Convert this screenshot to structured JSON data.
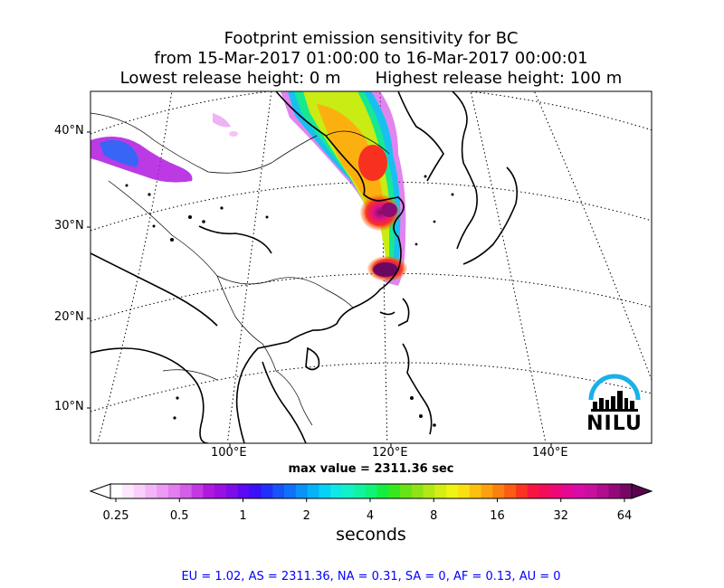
{
  "title": {
    "line1": "Footprint emission sensitivity for BC",
    "line2": "from 15-Mar-2017 01:00:00 to 16-Mar-2017 00:00:01",
    "lowest": "Lowest release height: 0 m",
    "highest": "Highest release height: 100 m"
  },
  "map": {
    "lat_labels": [
      "40°N",
      "30°N",
      "20°N",
      "10°N"
    ],
    "lon_labels": [
      "100°E",
      "120°E",
      "140°E"
    ],
    "max_value": "max value = 2311.36 sec"
  },
  "colorbar": {
    "tick_labels": [
      "0.25",
      "0.5",
      "1",
      "2",
      "4",
      "8",
      "16",
      "32",
      "64"
    ],
    "units": "seconds",
    "colors": [
      "#ffffff",
      "#fde7fd",
      "#f9cffb",
      "#f3b5f8",
      "#ec9af4",
      "#e27ef0",
      "#d45de9",
      "#c438e4",
      "#b018de",
      "#9a10e0",
      "#7e0cea",
      "#5c08f2",
      "#3a10f6",
      "#2030f8",
      "#1852fa",
      "#1070fa",
      "#0a92fa",
      "#06b2f8",
      "#08d0f6",
      "#10e8e8",
      "#12f2c8",
      "#10f4a0",
      "#0ef478",
      "#14ee40",
      "#38e81e",
      "#66e416",
      "#8ee414",
      "#b4e814",
      "#d4ee14",
      "#eef414",
      "#fae012",
      "#fcc010",
      "#fca010",
      "#fc8010",
      "#fc5c14",
      "#fa3420",
      "#f81440",
      "#f20c5a",
      "#ec0878",
      "#e40894",
      "#d80ca8",
      "#c8109e",
      "#b00e8e",
      "#94087a",
      "#760864"
    ]
  },
  "stats": "EU = 1.02,  AS = 2311.36,  NA = 0.31,  SA = 0,  AF = 0.13,  AU = 0",
  "logo": {
    "text": "NILU",
    "accent_color": "#1ab0e8"
  }
}
